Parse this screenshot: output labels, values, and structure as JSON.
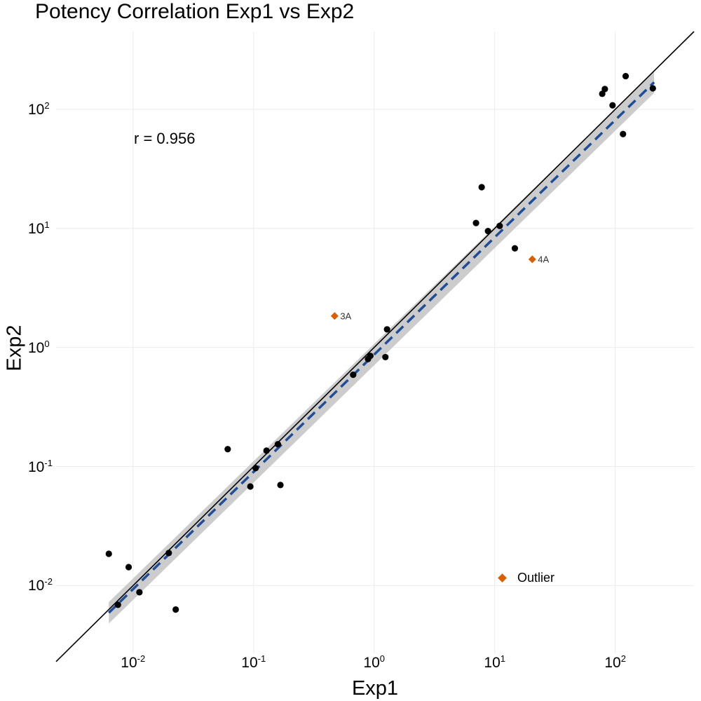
{
  "chart_data": {
    "type": "scatter",
    "title": "Potency Correlation Exp1 vs Exp2",
    "xlabel": "Exp1",
    "ylabel": "Exp2",
    "x_scale": "log10",
    "y_scale": "log10",
    "xlim": [
      0.0023,
      450
    ],
    "ylim": [
      0.0027,
      450
    ],
    "x_ticks": [
      {
        "value": 0.01,
        "base": "10",
        "exp": "-2"
      },
      {
        "value": 0.1,
        "base": "10",
        "exp": "-1"
      },
      {
        "value": 1,
        "base": "10",
        "exp": "0"
      },
      {
        "value": 10,
        "base": "10",
        "exp": "1"
      },
      {
        "value": 100,
        "base": "10",
        "exp": "2"
      }
    ],
    "y_ticks": [
      {
        "value": 0.01,
        "base": "10",
        "exp": "-2"
      },
      {
        "value": 0.1,
        "base": "10",
        "exp": "-1"
      },
      {
        "value": 1,
        "base": "10",
        "exp": "0"
      },
      {
        "value": 10,
        "base": "10",
        "exp": "1"
      },
      {
        "value": 100,
        "base": "10",
        "exp": "2"
      }
    ],
    "grid": true,
    "annotation": "r = 0.956",
    "identity_line": {
      "from": 0.0023,
      "to": 450,
      "color": "#000000"
    },
    "fit_line": {
      "x_range": [
        0.0063,
        210
      ],
      "intercept_log10": -0.06,
      "slope": 0.985,
      "band_halfwidth_log10": 0.09,
      "color": "#1f4e99",
      "band_color": "#cccccc"
    },
    "points": [
      {
        "x": 0.0063,
        "y": 0.0185
      },
      {
        "x": 0.0075,
        "y": 0.0069
      },
      {
        "x": 0.0092,
        "y": 0.0143
      },
      {
        "x": 0.0113,
        "y": 0.0088
      },
      {
        "x": 0.0198,
        "y": 0.0188
      },
      {
        "x": 0.0226,
        "y": 0.0063
      },
      {
        "x": 0.061,
        "y": 0.14
      },
      {
        "x": 0.094,
        "y": 0.068
      },
      {
        "x": 0.104,
        "y": 0.097
      },
      {
        "x": 0.128,
        "y": 0.136
      },
      {
        "x": 0.159,
        "y": 0.154
      },
      {
        "x": 0.167,
        "y": 0.07
      },
      {
        "x": 0.67,
        "y": 0.59
      },
      {
        "x": 0.89,
        "y": 0.8
      },
      {
        "x": 0.93,
        "y": 0.85
      },
      {
        "x": 1.24,
        "y": 0.83
      },
      {
        "x": 1.28,
        "y": 1.42
      },
      {
        "x": 7.0,
        "y": 11.1
      },
      {
        "x": 7.8,
        "y": 22.2
      },
      {
        "x": 8.8,
        "y": 9.5
      },
      {
        "x": 11.0,
        "y": 10.5
      },
      {
        "x": 14.7,
        "y": 6.8
      },
      {
        "x": 78,
        "y": 135
      },
      {
        "x": 82,
        "y": 148
      },
      {
        "x": 95,
        "y": 108
      },
      {
        "x": 116,
        "y": 62
      },
      {
        "x": 122,
        "y": 190
      },
      {
        "x": 205,
        "y": 150
      }
    ],
    "outliers": [
      {
        "x": 0.47,
        "y": 1.84,
        "label": "3A"
      },
      {
        "x": 20.5,
        "y": 5.5,
        "label": "4A"
      }
    ],
    "point_color": "#000000",
    "outlier_color": "#d95f02",
    "legend": {
      "label": "Outlier",
      "placement": "bottom-right"
    }
  }
}
